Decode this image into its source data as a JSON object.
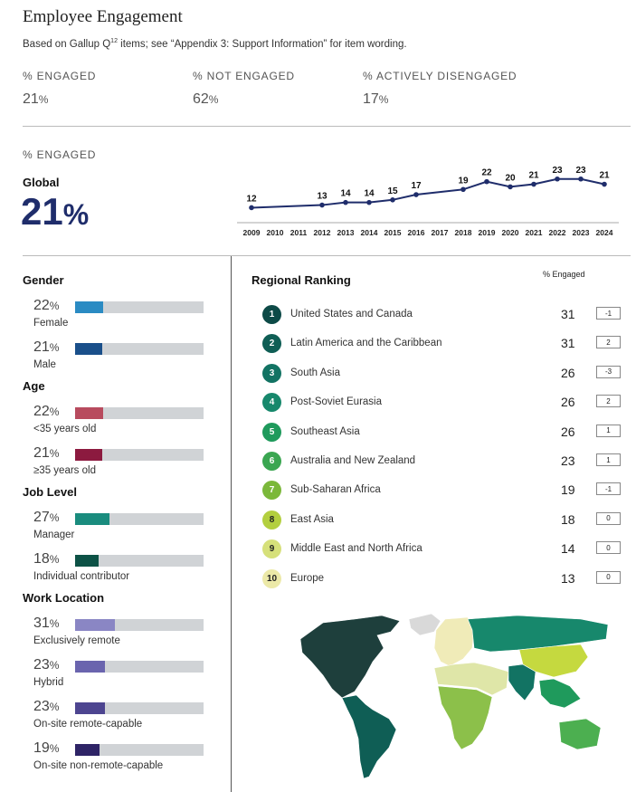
{
  "header": {
    "title": "Employee Engagement",
    "subtitle_pre": "Based on Gallup Q",
    "subtitle_sup": "12",
    "subtitle_post": " items; see “Appendix 3: Support Information” for item wording."
  },
  "summary": [
    {
      "label": "% ENGAGED",
      "value": "21",
      "unit": "%"
    },
    {
      "label": "% NOT ENGAGED",
      "value": "62",
      "unit": "%"
    },
    {
      "label": "% ACTIVELY DISENGAGED",
      "value": "17",
      "unit": "%"
    }
  ],
  "global": {
    "section_label": "% ENGAGED",
    "label": "Global",
    "value": "21",
    "unit": "%"
  },
  "chart_data": {
    "type": "line",
    "title": "",
    "x": [
      2009,
      2012,
      2013,
      2014,
      2015,
      2016,
      2018,
      2019,
      2020,
      2021,
      2022,
      2023,
      2024
    ],
    "values": [
      12,
      13,
      14,
      14,
      15,
      17,
      19,
      22,
      20,
      21,
      23,
      23,
      21
    ],
    "tick_labels": [
      "2009",
      "2010",
      "2011",
      "2012",
      "2013",
      "2014",
      "2015",
      "2016",
      "2017",
      "2018",
      "2019",
      "2020",
      "2021",
      "2022",
      "2023",
      "2024"
    ],
    "xlim": [
      2009,
      2024
    ],
    "ylim": [
      0,
      25
    ],
    "line_color": "#1f2d6b"
  },
  "demographics": [
    {
      "group": "Gender",
      "items": [
        {
          "label": "Female",
          "value": 22,
          "color": "#2b8bc3"
        },
        {
          "label": "Male",
          "value": 21,
          "color": "#1a4f8a"
        }
      ]
    },
    {
      "group": "Age",
      "items": [
        {
          "label": "<35 years old",
          "value": 22,
          "color": "#b84b5e"
        },
        {
          "label": "≥35 years old",
          "value": 21,
          "color": "#8c1a3f"
        }
      ]
    },
    {
      "group": "Job Level",
      "items": [
        {
          "label": "Manager",
          "value": 27,
          "color": "#1a8c7e"
        },
        {
          "label": "Individual contributor",
          "value": 18,
          "color": "#0d5246"
        }
      ]
    },
    {
      "group": "Work Location",
      "items": [
        {
          "label": "Exclusively remote",
          "value": 31,
          "color": "#8a86c4"
        },
        {
          "label": "Hybrid",
          "value": 23,
          "color": "#6a64ae"
        },
        {
          "label": "On-site remote-capable",
          "value": 23,
          "color": "#4d4590"
        },
        {
          "label": "On-site non-remote-capable",
          "value": 19,
          "color": "#2e2466"
        }
      ]
    }
  ],
  "percent_sign": "%",
  "ranking": {
    "title": "Regional Ranking",
    "column_header": "% Engaged",
    "rows": [
      {
        "rank": "1",
        "name": "United States and Canada",
        "value": "31",
        "change": "-1",
        "color": "#0d4a47",
        "text_color": "#ffffff"
      },
      {
        "rank": "2",
        "name": "Latin America and the Caribbean",
        "value": "31",
        "change": "2",
        "color": "#0f5e55",
        "text_color": "#ffffff"
      },
      {
        "rank": "3",
        "name": "South Asia",
        "value": "26",
        "change": "-3",
        "color": "#127363",
        "text_color": "#ffffff"
      },
      {
        "rank": "4",
        "name": "Post-Soviet Eurasia",
        "value": "26",
        "change": "2",
        "color": "#17886c",
        "text_color": "#ffffff"
      },
      {
        "rank": "5",
        "name": "Southeast Asia",
        "value": "26",
        "change": "1",
        "color": "#1f9a5c",
        "text_color": "#ffffff"
      },
      {
        "rank": "6",
        "name": "Australia and New Zealand",
        "value": "23",
        "change": "1",
        "color": "#3aa651",
        "text_color": "#ffffff"
      },
      {
        "rank": "7",
        "name": "Sub-Saharan Africa",
        "value": "19",
        "change": "-1",
        "color": "#7bb83a",
        "text_color": "#ffffff"
      },
      {
        "rank": "8",
        "name": "East Asia",
        "value": "18",
        "change": "0",
        "color": "#b3cf3f",
        "text_color": "#222222"
      },
      {
        "rank": "9",
        "name": "Middle East and North Africa",
        "value": "14",
        "change": "0",
        "color": "#d6e07a",
        "text_color": "#222222"
      },
      {
        "rank": "10",
        "name": "Europe",
        "value": "13",
        "change": "0",
        "color": "#ece9a8",
        "text_color": "#222222"
      }
    ]
  },
  "map": {
    "regions": [
      {
        "name": "United States and Canada",
        "color": "#1e3f3c"
      },
      {
        "name": "Latin America and the Caribbean",
        "color": "#0f5e55"
      },
      {
        "name": "South Asia",
        "color": "#127363"
      },
      {
        "name": "Post-Soviet Eurasia",
        "color": "#17886c"
      },
      {
        "name": "Southeast Asia",
        "color": "#1f9a5c"
      },
      {
        "name": "Australia and New Zealand",
        "color": "#4caf50"
      },
      {
        "name": "Sub-Saharan Africa",
        "color": "#8cc04a"
      },
      {
        "name": "East Asia",
        "color": "#c5d93f"
      },
      {
        "name": "Middle East and North Africa",
        "color": "#dfe6a8"
      },
      {
        "name": "Europe",
        "color": "#f0ebb8"
      },
      {
        "name": "No data",
        "color": "#d9d9d9"
      }
    ]
  }
}
